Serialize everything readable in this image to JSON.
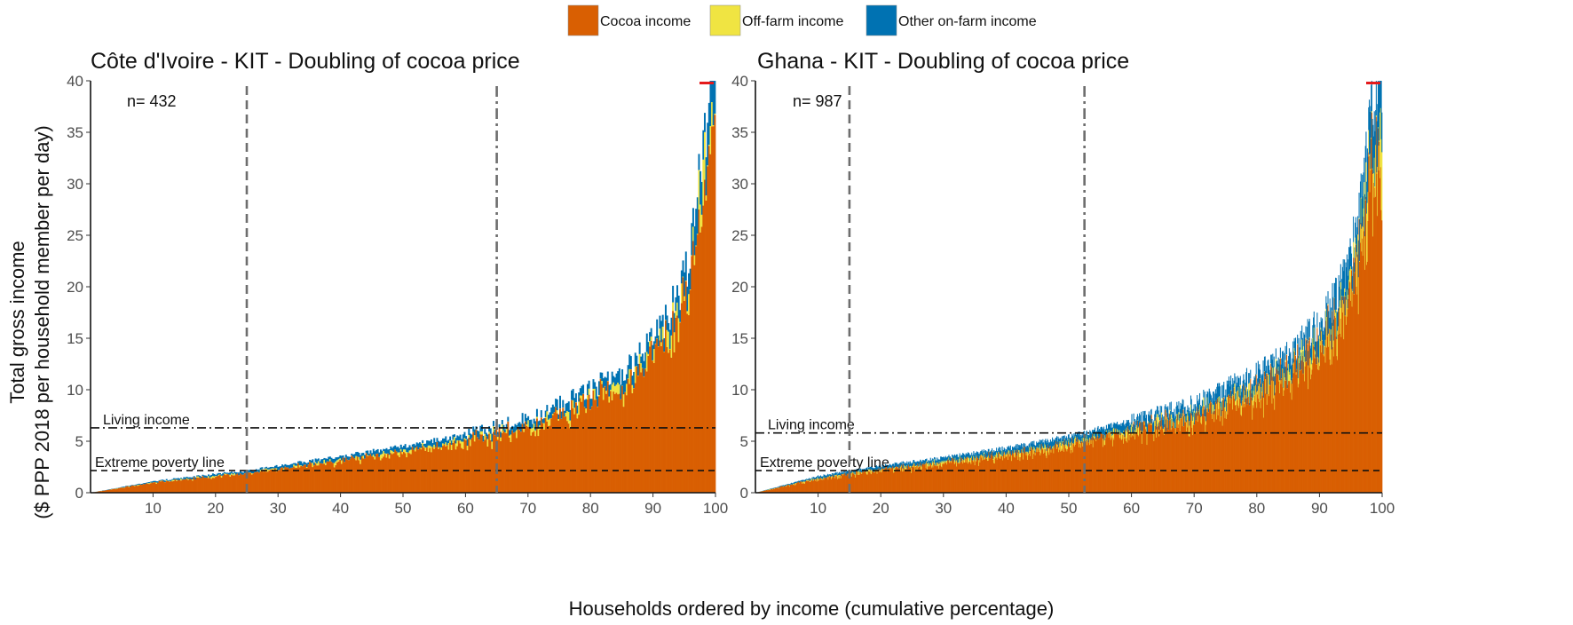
{
  "legend": {
    "items": [
      {
        "label": "Cocoa income",
        "color": "#D95F02"
      },
      {
        "label": "Off-farm income",
        "color": "#F0E442"
      },
      {
        "label": "Other on-farm income",
        "color": "#0072B2"
      }
    ]
  },
  "axes": {
    "ylabel_line1": "Total gross income",
    "ylabel_line2": "($ PPP 2018 per household member per day)",
    "xlabel": "Households ordered by income (cumulative percentage)"
  },
  "chart_data": [
    {
      "type": "bar",
      "stacked": true,
      "title": "Côte d'Ivoire - KIT - Doubling of cocoa price",
      "n_label": "n= 432",
      "n": 432,
      "xlim": [
        0,
        100
      ],
      "ylim": [
        0,
        40
      ],
      "xticks": [
        10,
        20,
        30,
        40,
        50,
        60,
        70,
        80,
        90,
        100
      ],
      "yticks": [
        0,
        5,
        10,
        15,
        20,
        25,
        30,
        35,
        40
      ],
      "total_income_curve": {
        "x": [
          0,
          10,
          20,
          25,
          30,
          40,
          50,
          60,
          65,
          70,
          75,
          80,
          85,
          88,
          90,
          92,
          94,
          95,
          96,
          97,
          98,
          99,
          100
        ],
        "y": [
          0,
          1.1,
          1.8,
          2.1,
          2.6,
          3.5,
          4.5,
          5.6,
          6.4,
          7.2,
          8.5,
          10.0,
          11.8,
          13.5,
          15.0,
          17.0,
          19.0,
          21.0,
          24.0,
          28.0,
          33.0,
          40.0,
          40.0
        ]
      },
      "component_share": {
        "cocoa": 0.86,
        "off_farm": 0.05,
        "other_on_farm": 0.09
      },
      "living_income": {
        "label": "Living income",
        "value": 6.3
      },
      "extreme_poverty": {
        "label": "Extreme poverty line",
        "value": 2.15
      },
      "vline_poverty_pct": 25,
      "vline_living_pct": 65,
      "truncated_marker": "red"
    },
    {
      "type": "bar",
      "stacked": true,
      "title": "Ghana - KIT - Doubling of cocoa price",
      "n_label": "n= 987",
      "n": 987,
      "xlim": [
        0,
        100
      ],
      "ylim": [
        0,
        40
      ],
      "xticks": [
        10,
        20,
        30,
        40,
        50,
        60,
        70,
        80,
        90,
        100
      ],
      "yticks": [
        0,
        5,
        10,
        15,
        20,
        25,
        30,
        35,
        40
      ],
      "total_income_curve": {
        "x": [
          0,
          10,
          15,
          20,
          30,
          40,
          50,
          52.5,
          60,
          70,
          80,
          85,
          90,
          93,
          95,
          96,
          97,
          98,
          99,
          100
        ],
        "y": [
          0,
          1.6,
          2.1,
          2.6,
          3.4,
          4.3,
          5.4,
          5.8,
          6.9,
          8.6,
          11.5,
          13.5,
          16.5,
          19.5,
          23.0,
          26.0,
          30.0,
          36.0,
          40.0,
          40.0
        ]
      },
      "component_share": {
        "cocoa": 0.82,
        "off_farm": 0.07,
        "other_on_farm": 0.11
      },
      "living_income": {
        "label": "Living income",
        "value": 5.8
      },
      "extreme_poverty": {
        "label": "Extreme poverty line",
        "value": 2.15
      },
      "vline_poverty_pct": 15,
      "vline_living_pct": 52.5,
      "truncated_marker": "red"
    }
  ]
}
